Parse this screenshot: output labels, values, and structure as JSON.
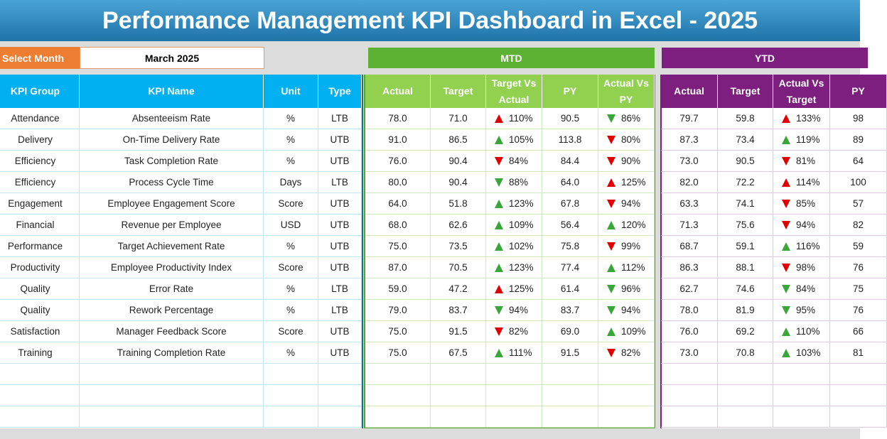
{
  "header": {
    "title": "Performance Management KPI Dashboard in Excel - 2025"
  },
  "controls": {
    "select_label": "Select Month",
    "month": "March 2025"
  },
  "sections": {
    "mtd": "MTD",
    "ytd": "YTD"
  },
  "table": {
    "columns": [
      "KPI Group",
      "KPI Name",
      "Unit",
      "Type",
      "Actual",
      "Target",
      "Target Vs Actual",
      "PY",
      "Actual Vs PY",
      "Actual",
      "Target",
      "Actual Vs Target",
      "PY"
    ],
    "rows": [
      [
        "Attendance",
        "Absenteeism Rate",
        "%",
        "LTB",
        "78.0",
        "71.0",
        "110%",
        "90.5",
        "86%",
        "79.7",
        "59.8",
        "133%",
        "98"
      ],
      [
        "Delivery",
        "On-Time Delivery Rate",
        "%",
        "UTB",
        "91.0",
        "86.5",
        "105%",
        "113.8",
        "80%",
        "87.3",
        "73.4",
        "119%",
        "89"
      ],
      [
        "Efficiency",
        "Task Completion Rate",
        "%",
        "UTB",
        "76.0",
        "90.4",
        "84%",
        "84.4",
        "90%",
        "73.0",
        "90.5",
        "81%",
        "64"
      ],
      [
        "Efficiency",
        "Process Cycle Time",
        "Days",
        "LTB",
        "80.0",
        "90.4",
        "88%",
        "64.0",
        "125%",
        "82.0",
        "72.2",
        "114%",
        "100"
      ],
      [
        "Engagement",
        "Employee Engagement Score",
        "Score",
        "UTB",
        "64.0",
        "51.8",
        "123%",
        "67.8",
        "94%",
        "63.3",
        "74.1",
        "85%",
        "57"
      ],
      [
        "Financial",
        "Revenue per Employee",
        "USD",
        "UTB",
        "68.0",
        "62.6",
        "109%",
        "56.4",
        "120%",
        "71.3",
        "75.6",
        "94%",
        "82"
      ],
      [
        "Performance",
        "Target Achievement Rate",
        "%",
        "UTB",
        "75.0",
        "73.5",
        "102%",
        "75.8",
        "99%",
        "68.7",
        "59.1",
        "116%",
        "59"
      ],
      [
        "Productivity",
        "Employee Productivity Index",
        "Score",
        "UTB",
        "87.0",
        "70.5",
        "123%",
        "77.4",
        "112%",
        "86.3",
        "88.1",
        "98%",
        "76"
      ],
      [
        "Quality",
        "Error Rate",
        "%",
        "LTB",
        "59.0",
        "47.2",
        "125%",
        "61.4",
        "96%",
        "62.7",
        "74.6",
        "84%",
        "75"
      ],
      [
        "Quality",
        "Rework Percentage",
        "%",
        "LTB",
        "79.0",
        "83.7",
        "94%",
        "83.7",
        "94%",
        "78.0",
        "81.9",
        "95%",
        "76"
      ],
      [
        "Satisfaction",
        "Manager Feedback Score",
        "Score",
        "UTB",
        "75.0",
        "91.5",
        "82%",
        "69.0",
        "109%",
        "76.0",
        "69.2",
        "110%",
        "66"
      ],
      [
        "Training",
        "Training Completion Rate",
        "%",
        "UTB",
        "75.0",
        "67.5",
        "111%",
        "91.5",
        "82%",
        "73.0",
        "70.8",
        "103%",
        "81"
      ]
    ]
  }
}
